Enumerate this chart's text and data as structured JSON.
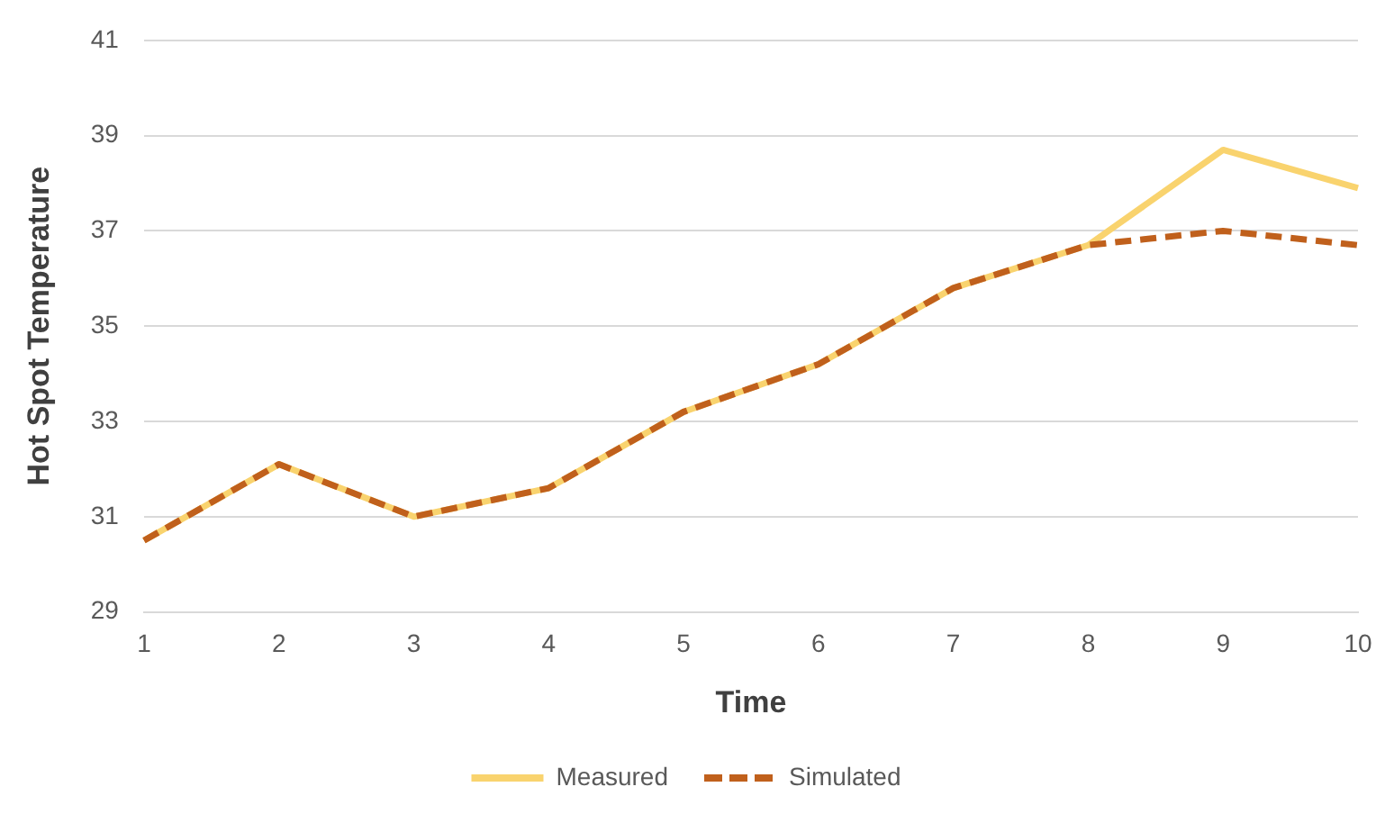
{
  "chart_data": {
    "type": "line",
    "xlabel": "Time",
    "ylabel": "Hot Spot Temperature",
    "categories": [
      "1",
      "2",
      "3",
      "4",
      "5",
      "6",
      "7",
      "8",
      "9",
      "10"
    ],
    "series": [
      {
        "name": "Measured",
        "color": "#f9d36e",
        "line_style": "solid",
        "values": [
          30.5,
          32.1,
          31.0,
          31.6,
          33.2,
          34.2,
          35.8,
          36.7,
          38.7,
          37.9
        ]
      },
      {
        "name": "Simulated",
        "color": "#c0601c",
        "line_style": "dashed",
        "values": [
          30.5,
          32.1,
          31.0,
          31.6,
          33.2,
          34.2,
          35.8,
          36.7,
          37.0,
          36.7
        ]
      }
    ],
    "ylim": [
      29,
      41
    ],
    "yticks": [
      29,
      31,
      33,
      35,
      37,
      39,
      41
    ],
    "grid": "y",
    "legend": "bottom",
    "marker": "none"
  }
}
